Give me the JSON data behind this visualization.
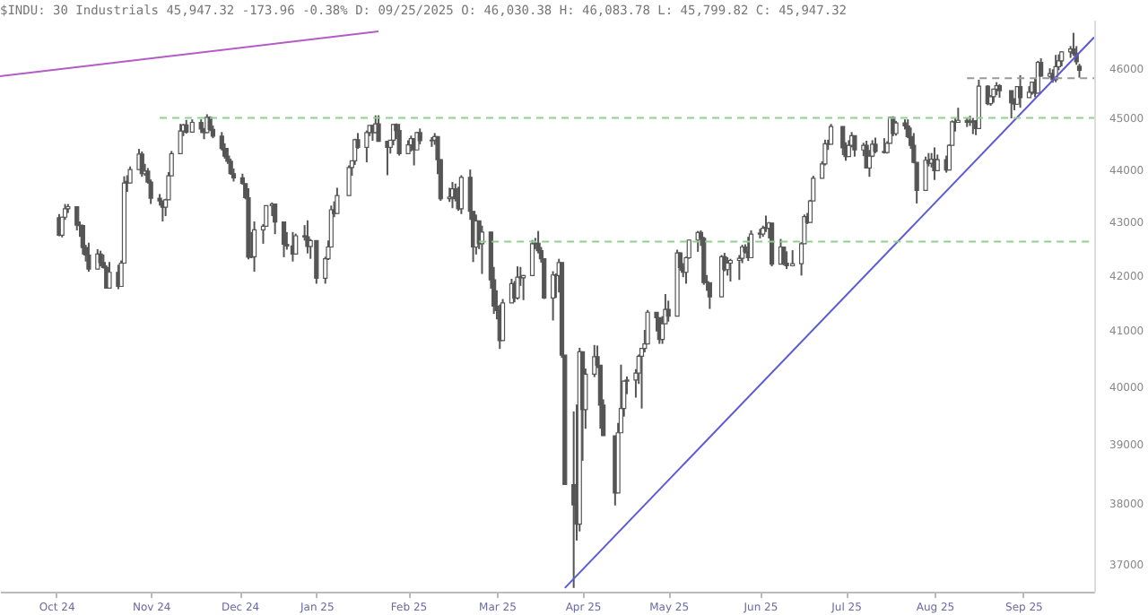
{
  "chart_data": {
    "type": "candlestick",
    "title": "$INDU: 30 Industrials 45,947.32 -173.96 -0.38% D: 09/25/2025 O: 46,030.38 H: 46,083.78 L: 45,799.82 C: 45,947.32",
    "color": "#555555",
    "x": [
      "2024-10-15",
      "2024-10-16",
      "2024-10-17",
      "2024-10-18",
      "2024-10-21",
      "2024-10-22",
      "2024-10-23",
      "2024-10-24",
      "2024-10-25",
      "2024-10-28",
      "2024-10-29",
      "2024-10-30",
      "2024-10-31",
      "2024-11-01",
      "2024-11-04",
      "2024-11-05",
      "2024-11-06",
      "2024-11-07",
      "2024-11-08",
      "2024-11-11",
      "2024-11-12",
      "2024-11-13",
      "2024-11-14",
      "2024-11-15",
      "2024-11-18",
      "2024-11-19",
      "2024-11-20",
      "2024-11-21",
      "2024-11-22",
      "2024-11-25",
      "2024-11-26",
      "2024-11-27",
      "2024-11-29",
      "2024-12-02",
      "2024-12-03",
      "2024-12-04",
      "2024-12-05",
      "2024-12-06",
      "2024-12-09",
      "2024-12-10",
      "2024-12-11",
      "2024-12-12",
      "2024-12-13",
      "2024-12-16",
      "2024-12-17",
      "2024-12-18",
      "2024-12-19",
      "2024-12-20",
      "2024-12-23",
      "2024-12-24",
      "2024-12-26",
      "2024-12-27",
      "2024-12-30",
      "2024-12-31",
      "2025-01-02",
      "2025-01-03",
      "2025-01-06",
      "2025-01-07",
      "2025-01-08",
      "2025-01-10",
      "2025-01-13",
      "2025-01-14",
      "2025-01-15",
      "2025-01-16",
      "2025-01-17",
      "2025-01-21",
      "2025-01-22",
      "2025-01-23",
      "2025-01-24",
      "2025-01-27",
      "2025-01-28",
      "2025-01-29",
      "2025-01-30",
      "2025-01-31",
      "2025-02-03",
      "2025-02-04",
      "2025-02-05",
      "2025-02-06",
      "2025-02-07",
      "2025-02-10",
      "2025-02-11",
      "2025-02-12",
      "2025-02-13",
      "2025-02-14",
      "2025-02-18",
      "2025-02-19",
      "2025-02-20",
      "2025-02-21",
      "2025-02-24",
      "2025-02-25",
      "2025-02-26",
      "2025-02-27",
      "2025-02-28",
      "2025-03-03",
      "2025-03-04",
      "2025-03-05",
      "2025-03-06",
      "2025-03-07",
      "2025-03-10",
      "2025-03-11",
      "2025-03-12",
      "2025-03-13",
      "2025-03-14",
      "2025-03-17",
      "2025-03-18",
      "2025-03-19",
      "2025-03-20",
      "2025-03-21",
      "2025-03-24",
      "2025-03-25",
      "2025-03-26",
      "2025-03-27",
      "2025-03-28",
      "2025-03-31",
      "2025-04-01",
      "2025-04-02",
      "2025-04-03",
      "2025-04-04",
      "2025-04-07",
      "2025-04-08",
      "2025-04-09",
      "2025-04-10",
      "2025-04-11",
      "2025-04-14",
      "2025-04-15",
      "2025-04-16",
      "2025-04-17",
      "2025-04-21",
      "2025-04-22",
      "2025-04-23",
      "2025-04-24",
      "2025-04-25",
      "2025-04-28",
      "2025-04-29",
      "2025-04-30",
      "2025-05-01",
      "2025-05-02",
      "2025-05-05",
      "2025-05-06",
      "2025-05-07",
      "2025-05-08",
      "2025-05-09",
      "2025-05-12",
      "2025-05-13",
      "2025-05-14",
      "2025-05-15",
      "2025-05-16",
      "2025-05-19",
      "2025-05-20",
      "2025-05-21",
      "2025-05-22",
      "2025-05-23",
      "2025-05-27",
      "2025-05-28",
      "2025-05-29",
      "2025-05-30",
      "2025-06-02",
      "2025-06-03",
      "2025-06-04",
      "2025-06-05",
      "2025-06-06",
      "2025-06-09",
      "2025-06-10",
      "2025-06-11",
      "2025-06-12",
      "2025-06-13",
      "2025-06-16",
      "2025-06-17",
      "2025-06-18",
      "2025-06-20",
      "2025-06-23",
      "2025-06-24",
      "2025-06-25",
      "2025-06-26",
      "2025-06-27",
      "2025-06-30",
      "2025-07-01",
      "2025-07-02",
      "2025-07-03",
      "2025-07-07",
      "2025-07-08",
      "2025-07-09",
      "2025-07-10",
      "2025-07-11",
      "2025-07-14",
      "2025-07-15",
      "2025-07-16",
      "2025-07-17",
      "2025-07-18",
      "2025-07-21",
      "2025-07-22",
      "2025-07-23",
      "2025-07-24",
      "2025-07-25",
      "2025-07-28",
      "2025-07-29",
      "2025-07-30",
      "2025-07-31",
      "2025-08-01",
      "2025-08-04",
      "2025-08-05",
      "2025-08-06",
      "2025-08-07",
      "2025-08-08",
      "2025-08-11",
      "2025-08-12",
      "2025-08-13",
      "2025-08-14",
      "2025-08-15",
      "2025-08-18",
      "2025-08-19",
      "2025-08-20",
      "2025-08-21",
      "2025-08-22",
      "2025-08-25",
      "2025-08-26",
      "2025-08-27",
      "2025-08-28",
      "2025-08-29",
      "2025-09-02",
      "2025-09-03",
      "2025-09-04",
      "2025-09-05",
      "2025-09-08",
      "2025-09-09",
      "2025-09-10",
      "2025-09-11",
      "2025-09-12",
      "2025-09-15",
      "2025-09-16",
      "2025-09-17",
      "2025-09-18",
      "2025-09-19",
      "2025-09-22",
      "2025-09-23",
      "2025-09-24",
      "2025-09-25"
    ],
    "ohlc": [
      [
        43070,
        43140,
        42720,
        42740
      ],
      [
        42740,
        43090,
        42700,
        43080
      ],
      [
        43080,
        43330,
        43030,
        43240
      ],
      [
        43240,
        43330,
        43160,
        43280
      ],
      [
        43280,
        43280,
        42830,
        42930
      ],
      [
        42930,
        43000,
        42710,
        42920
      ],
      [
        42920,
        42940,
        42380,
        42510
      ],
      [
        42510,
        42560,
        42250,
        42370
      ],
      [
        42370,
        42600,
        42060,
        42110
      ],
      [
        42110,
        42480,
        42110,
        42390
      ],
      [
        42390,
        42450,
        42160,
        42230
      ],
      [
        42230,
        42380,
        42120,
        42140
      ],
      [
        42140,
        42180,
        41750,
        41760
      ],
      [
        41760,
        42240,
        41760,
        42050
      ],
      [
        42050,
        42190,
        41740,
        41790
      ],
      [
        41790,
        42270,
        41790,
        42220
      ],
      [
        42220,
        43860,
        42220,
        43730
      ],
      [
        43760,
        43880,
        43560,
        43730
      ],
      [
        43730,
        44050,
        43730,
        43990
      ],
      [
        43990,
        44390,
        43990,
        44290
      ],
      [
        44290,
        44340,
        43850,
        43910
      ],
      [
        43910,
        44100,
        43870,
        43960
      ],
      [
        43960,
        44020,
        43720,
        43750
      ],
      [
        43750,
        43800,
        43330,
        43440
      ],
      [
        43440,
        43520,
        43300,
        43390
      ],
      [
        43390,
        43390,
        43000,
        43270
      ],
      [
        43270,
        43430,
        43100,
        43410
      ],
      [
        43410,
        43940,
        43410,
        43870
      ],
      [
        43870,
        44350,
        43870,
        44300
      ],
      [
        44300,
        44880,
        44300,
        44740
      ],
      [
        44740,
        44880,
        44640,
        44860
      ],
      [
        44860,
        44960,
        44690,
        44720
      ],
      [
        44720,
        44970,
        44720,
        44910
      ],
      [
        44910,
        44970,
        44700,
        44780
      ],
      [
        44780,
        44800,
        44580,
        44710
      ],
      [
        44710,
        45070,
        44700,
        45010
      ],
      [
        45010,
        45030,
        44740,
        44770
      ],
      [
        44770,
        44850,
        44600,
        44640
      ],
      [
        44640,
        44720,
        44360,
        44400
      ],
      [
        44400,
        44500,
        44200,
        44250
      ],
      [
        44250,
        44410,
        44100,
        44150
      ],
      [
        44150,
        44200,
        43890,
        43910
      ],
      [
        43910,
        44010,
        43760,
        43830
      ],
      [
        43830,
        43910,
        43700,
        43720
      ],
      [
        43720,
        43720,
        43420,
        43450
      ],
      [
        43450,
        43630,
        42290,
        42330
      ],
      [
        42330,
        42800,
        42310,
        42340
      ],
      [
        42340,
        43000,
        42060,
        42840
      ],
      [
        42840,
        42950,
        42580,
        42910
      ],
      [
        42910,
        43300,
        42910,
        43300
      ],
      [
        43300,
        43360,
        43100,
        43330
      ],
      [
        43330,
        43330,
        42760,
        42990
      ],
      [
        42990,
        42990,
        42330,
        42570
      ],
      [
        42570,
        42800,
        42470,
        42540
      ],
      [
        42540,
        42800,
        42250,
        42390
      ],
      [
        42390,
        42770,
        42390,
        42730
      ],
      [
        42730,
        42930,
        42640,
        42710
      ],
      [
        42710,
        43020,
        42400,
        42530
      ],
      [
        42530,
        42670,
        42300,
        42640
      ],
      [
        42640,
        42640,
        41840,
        41940
      ],
      [
        41940,
        42340,
        41840,
        42300
      ],
      [
        42300,
        42640,
        42280,
        42520
      ],
      [
        42520,
        43300,
        42520,
        43220
      ],
      [
        43220,
        43380,
        43080,
        43150
      ],
      [
        43150,
        43640,
        43150,
        43490
      ],
      [
        43490,
        44070,
        43490,
        44030
      ],
      [
        44030,
        44160,
        43870,
        44160
      ],
      [
        44160,
        44590,
        44080,
        44570
      ],
      [
        44570,
        44700,
        44390,
        44420
      ],
      [
        44420,
        44750,
        44130,
        44710
      ],
      [
        44710,
        44850,
        44640,
        44850
      ],
      [
        44850,
        44860,
        44550,
        44710
      ],
      [
        44710,
        45050,
        44700,
        44880
      ],
      [
        44880,
        45050,
        44530,
        44540
      ],
      [
        44540,
        44540,
        43880,
        44420
      ],
      [
        44420,
        44560,
        44300,
        44560
      ],
      [
        44560,
        44880,
        44460,
        44870
      ],
      [
        44870,
        44890,
        44580,
        44750
      ],
      [
        44750,
        44880,
        44260,
        44300
      ],
      [
        44300,
        44560,
        44300,
        44470
      ],
      [
        44470,
        44650,
        44340,
        44590
      ],
      [
        44590,
        44590,
        44070,
        44370
      ],
      [
        44370,
        44720,
        44370,
        44710
      ],
      [
        44710,
        44790,
        44480,
        44550
      ],
      [
        44550,
        44620,
        44430,
        44560
      ],
      [
        44560,
        44700,
        44470,
        44630
      ],
      [
        44630,
        44630,
        43900,
        44180
      ],
      [
        44180,
        44190,
        43390,
        43430
      ],
      [
        43430,
        43640,
        43370,
        43460
      ],
      [
        43460,
        43750,
        43250,
        43620
      ],
      [
        43620,
        43720,
        43380,
        43430
      ],
      [
        43430,
        43660,
        43200,
        43240
      ],
      [
        43240,
        43880,
        43140,
        43840
      ],
      [
        43840,
        43990,
        43030,
        43190
      ],
      [
        43190,
        43190,
        42240,
        42520
      ],
      [
        42520,
        43130,
        42380,
        43010
      ],
      [
        43010,
        43010,
        42480,
        42580
      ],
      [
        42580,
        42920,
        42020,
        42800
      ],
      [
        42800,
        42800,
        41750,
        41910
      ],
      [
        41910,
        42150,
        41290,
        41430
      ],
      [
        41430,
        41720,
        41190,
        41350
      ],
      [
        41350,
        41460,
        40660,
        40810
      ],
      [
        40810,
        41560,
        40810,
        41490
      ],
      [
        41490,
        41930,
        41490,
        41840
      ],
      [
        41840,
        41890,
        41500,
        41580
      ],
      [
        41580,
        42160,
        41550,
        41960
      ],
      [
        41960,
        42150,
        41800,
        41950
      ],
      [
        41950,
        42000,
        41540,
        41990
      ],
      [
        41990,
        42650,
        41990,
        42580
      ],
      [
        42580,
        42690,
        42480,
        42590
      ],
      [
        42590,
        42820,
        42400,
        42450
      ],
      [
        42450,
        42520,
        42230,
        42300
      ],
      [
        42300,
        42300,
        41560,
        41580
      ],
      [
        41580,
        42070,
        41170,
        42000
      ],
      [
        42000,
        42030,
        41580,
        41990
      ],
      [
        41990,
        42300,
        41680,
        42230
      ],
      [
        42230,
        42230,
        40500,
        40550
      ],
      [
        40550,
        40550,
        38310,
        38310
      ],
      [
        38310,
        39560,
        36610,
        37970
      ],
      [
        37970,
        39680,
        37380,
        37650
      ],
      [
        37650,
        40680,
        37530,
        40610
      ],
      [
        40610,
        40610,
        38710,
        39590
      ],
      [
        39590,
        40310,
        39260,
        40210
      ],
      [
        40210,
        40730,
        40160,
        40520
      ],
      [
        40520,
        40720,
        40320,
        40370
      ],
      [
        40370,
        40370,
        39260,
        39670
      ],
      [
        39670,
        39770,
        39140,
        39140
      ],
      [
        39140,
        39140,
        37960,
        38170
      ],
      [
        38170,
        39360,
        38170,
        39190
      ],
      [
        39190,
        40380,
        39190,
        39610
      ],
      [
        39610,
        40100,
        39470,
        40090
      ],
      [
        40090,
        40170,
        39860,
        40110
      ],
      [
        40110,
        40300,
        39800,
        40230
      ],
      [
        40230,
        40560,
        40040,
        40530
      ],
      [
        40530,
        40670,
        39610,
        40670
      ],
      [
        40670,
        41000,
        40600,
        40750
      ],
      [
        40750,
        41360,
        40750,
        41320
      ],
      [
        41320,
        41320,
        40970,
        41220
      ],
      [
        41220,
        41220,
        40750,
        40830
      ],
      [
        40830,
        41250,
        40750,
        41110
      ],
      [
        41110,
        41650,
        41110,
        41370
      ],
      [
        41370,
        41530,
        41150,
        41250
      ],
      [
        41250,
        42470,
        41250,
        42410
      ],
      [
        42410,
        42420,
        42080,
        42140
      ],
      [
        42140,
        42220,
        41960,
        42050
      ],
      [
        42050,
        42340,
        41840,
        42320
      ],
      [
        42320,
        42660,
        42300,
        42650
      ],
      [
        42650,
        42820,
        42430,
        42790
      ],
      [
        42790,
        42830,
        42540,
        42680
      ],
      [
        42680,
        42710,
        41820,
        41860
      ],
      [
        41880,
        42000,
        41710,
        41860
      ],
      [
        41860,
        41860,
        41380,
        41600
      ],
      [
        41600,
        42370,
        41600,
        42340
      ],
      [
        42340,
        42410,
        42070,
        42100
      ],
      [
        42100,
        42330,
        41990,
        42220
      ],
      [
        42220,
        42300,
        41880,
        42270
      ],
      [
        42270,
        42370,
        41910,
        42310
      ],
      [
        42310,
        42560,
        42220,
        42520
      ],
      [
        42520,
        42570,
        42400,
        42430
      ],
      [
        42430,
        42710,
        42260,
        42320
      ],
      [
        42320,
        42830,
        42320,
        42760
      ],
      [
        42780,
        42860,
        42680,
        42760
      ],
      [
        42760,
        42920,
        42710,
        42870
      ],
      [
        42890,
        43110,
        42800,
        42870
      ],
      [
        42870,
        42990,
        42680,
        42970
      ],
      [
        42970,
        42970,
        42160,
        42200
      ],
      [
        42200,
        42670,
        42200,
        42520
      ],
      [
        42520,
        42520,
        42180,
        42220
      ],
      [
        42220,
        42440,
        42110,
        42170
      ],
      [
        42170,
        42460,
        42160,
        42210
      ],
      [
        42210,
        42610,
        41990,
        42580
      ],
      [
        42580,
        43130,
        42580,
        43090
      ],
      [
        43090,
        43160,
        42950,
        42980
      ],
      [
        42980,
        43410,
        42980,
        43390
      ],
      [
        43390,
        43870,
        43390,
        43820
      ],
      [
        43820,
        44150,
        43820,
        44100
      ],
      [
        44100,
        44570,
        44070,
        44490
      ],
      [
        44490,
        44570,
        44370,
        44480
      ],
      [
        44480,
        44880,
        44480,
        44830
      ],
      [
        44830,
        44830,
        44270,
        44410
      ],
      [
        44410,
        44520,
        44160,
        44240
      ],
      [
        44240,
        44560,
        44240,
        44460
      ],
      [
        44460,
        44720,
        44420,
        44650
      ],
      [
        44650,
        44650,
        44240,
        44370
      ],
      [
        44370,
        44510,
        44250,
        44460
      ],
      [
        44460,
        44550,
        44020,
        44020
      ],
      [
        44020,
        44370,
        43850,
        44250
      ],
      [
        44250,
        44560,
        44230,
        44480
      ],
      [
        44480,
        44610,
        44310,
        44340
      ],
      [
        44340,
        44600,
        44300,
        44320
      ],
      [
        44320,
        44540,
        44300,
        44500
      ],
      [
        44500,
        45020,
        44500,
        45010
      ],
      [
        45010,
        45030,
        44640,
        44690
      ],
      [
        44690,
        44940,
        44650,
        44900
      ],
      [
        44900,
        44970,
        44770,
        44840
      ],
      [
        44840,
        44970,
        44600,
        44630
      ],
      [
        44630,
        44810,
        44390,
        44460
      ],
      [
        44460,
        44700,
        44110,
        44130
      ],
      [
        44130,
        44130,
        43340,
        43590
      ],
      [
        43590,
        44240,
        43590,
        44170
      ],
      [
        44170,
        44310,
        44050,
        44110
      ],
      [
        44110,
        44310,
        44030,
        44190
      ],
      [
        44190,
        44420,
        43790,
        43970
      ],
      [
        43970,
        44280,
        43960,
        44180
      ],
      [
        44180,
        44260,
        43930,
        43980
      ],
      [
        43980,
        44480,
        43980,
        44460
      ],
      [
        44460,
        44950,
        44460,
        44920
      ],
      [
        44920,
        44990,
        44730,
        44910
      ],
      [
        44910,
        45200,
        44910,
        44950
      ],
      [
        44950,
        45000,
        44820,
        44910
      ],
      [
        44910,
        45040,
        44840,
        44920
      ],
      [
        44920,
        45000,
        44680,
        44940
      ],
      [
        44940,
        44950,
        44660,
        44790
      ],
      [
        44790,
        45760,
        44790,
        45630
      ],
      [
        45630,
        45650,
        45250,
        45280
      ],
      [
        45280,
        45450,
        45240,
        45420
      ],
      [
        45420,
        45570,
        45300,
        45570
      ],
      [
        45570,
        45710,
        45450,
        45640
      ],
      [
        45640,
        45670,
        45400,
        45540
      ],
      [
        45540,
        45540,
        44990,
        45300
      ],
      [
        45300,
        45390,
        45150,
        45270
      ],
      [
        45270,
        45630,
        45260,
        45620
      ],
      [
        45620,
        45850,
        45200,
        45400
      ],
      [
        45400,
        45630,
        45400,
        45510
      ],
      [
        45510,
        45720,
        45460,
        45710
      ],
      [
        45710,
        45790,
        45410,
        45490
      ],
      [
        45490,
        46140,
        45490,
        46110
      ],
      [
        46110,
        46190,
        45820,
        45830
      ],
      [
        45830,
        45990,
        45800,
        45880
      ],
      [
        45880,
        45970,
        45700,
        45760
      ],
      [
        45760,
        46260,
        45710,
        46020
      ],
      [
        46020,
        46270,
        45950,
        46140
      ],
      [
        46140,
        46330,
        46030,
        46320
      ],
      [
        46320,
        46440,
        46200,
        46380
      ],
      [
        46380,
        46710,
        46240,
        46290
      ],
      [
        46290,
        46440,
        46060,
        46120
      ],
      [
        46030,
        46080,
        45800,
        45950
      ]
    ],
    "series": [
      {
        "type": "line",
        "color": "#5a5ad6",
        "line_style": "solid",
        "x": [
          "2025-04-04",
          "2025-09-30"
        ],
        "values": [
          36610,
          46620
        ]
      },
      {
        "type": "line",
        "color": "#b35cc8",
        "line_style": "solid",
        "x": [
          "2024-09-25",
          "2025-01-31"
        ],
        "values": [
          45830,
          46740
        ]
      },
      {
        "type": "line",
        "color": "#8fcf8f",
        "line_style": "dashed",
        "x": [
          "2024-11-18",
          "2025-09-30"
        ],
        "values": [
          45000,
          45000
        ]
      },
      {
        "type": "line",
        "color": "#8fcf8f",
        "line_style": "dashed",
        "x": [
          "2025-03-06",
          "2025-09-30"
        ],
        "values": [
          42620,
          42620
        ]
      },
      {
        "type": "line",
        "color": "#999999",
        "line_style": "dashed",
        "x": [
          "2025-08-18",
          "2025-09-30"
        ],
        "values": [
          45790,
          45790
        ]
      }
    ],
    "xlim": [
      "2024-09-25",
      "2025-09-30"
    ],
    "xticks": [
      {
        "value": "2024-10-14",
        "label": "Oct 24"
      },
      {
        "value": "2024-11-15",
        "label": "Nov 24"
      },
      {
        "value": "2024-12-15",
        "label": "Dec 24"
      },
      {
        "value": "2025-01-10",
        "label": "Jan 25"
      },
      {
        "value": "2025-02-10",
        "label": "Feb 25"
      },
      {
        "value": "2025-03-12",
        "label": "Mar 25"
      },
      {
        "value": "2025-04-10",
        "label": "Apr 25"
      },
      {
        "value": "2025-05-09",
        "label": "May 25"
      },
      {
        "value": "2025-06-09",
        "label": "Jun 25"
      },
      {
        "value": "2025-07-08",
        "label": "Jul 25"
      },
      {
        "value": "2025-08-07",
        "label": "Aug 25"
      },
      {
        "value": "2025-09-06",
        "label": "Sep 25"
      }
    ],
    "ylim": [
      36550,
      46980
    ],
    "yticks": [
      37000,
      38000,
      39000,
      40000,
      41000,
      42000,
      43000,
      44000,
      45000,
      46000
    ],
    "log": "y"
  }
}
